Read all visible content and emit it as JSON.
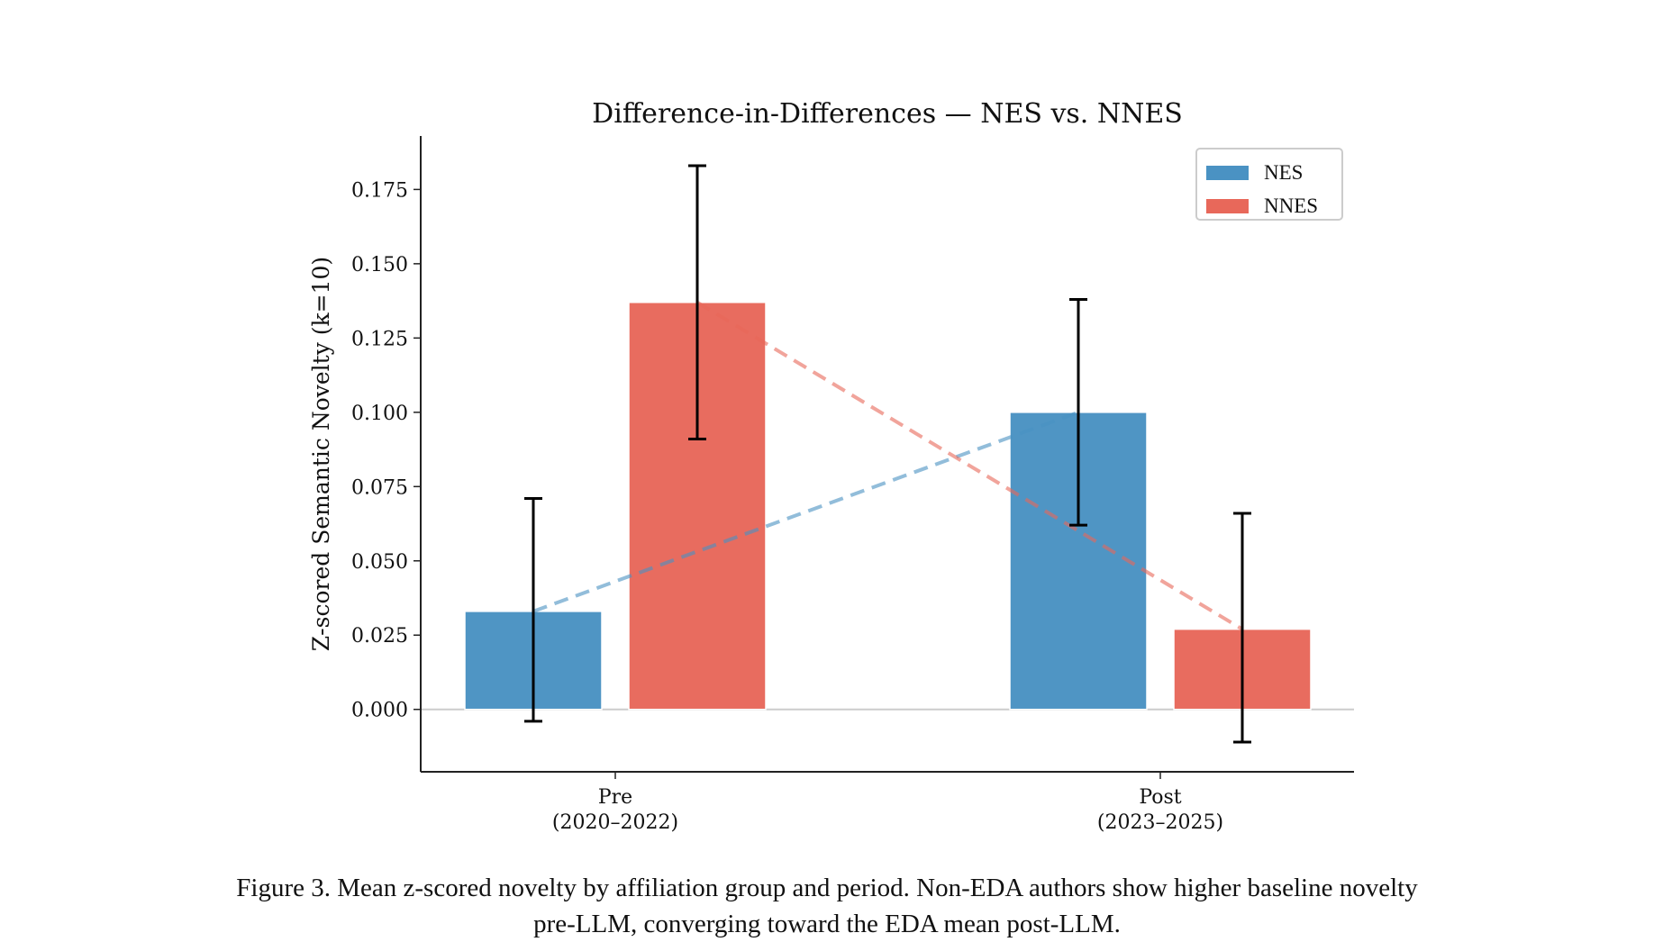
{
  "chart_data": {
    "type": "bar",
    "title": "Difference-in-Differences — NES vs. NNES",
    "xlabel": "",
    "ylabel": "Z-scored Semantic Novelty (k=10)",
    "categories": [
      "Pre\n(2020–2022)",
      "Post\n(2023–2025)"
    ],
    "category_lines": [
      [
        "Pre",
        "(2020–2022)"
      ],
      [
        "Post",
        "(2023–2025)"
      ]
    ],
    "ylim": [
      -0.021,
      0.193
    ],
    "yticks": [
      "0.000",
      "0.025",
      "0.050",
      "0.075",
      "0.100",
      "0.125",
      "0.150",
      "0.175"
    ],
    "ytick_values": [
      0,
      0.025,
      0.05,
      0.075,
      0.1,
      0.125,
      0.15,
      0.175
    ],
    "grid": false,
    "legend_position": "top-right",
    "series": [
      {
        "name": "NES",
        "color": "#4a92c3",
        "values": [
          0.033,
          0.1
        ],
        "err_low": [
          -0.004,
          0.062
        ],
        "err_high": [
          0.071,
          0.138
        ]
      },
      {
        "name": "NNES",
        "color": "#e8685a",
        "values": [
          0.137,
          0.027
        ],
        "err_low": [
          0.091,
          -0.011
        ],
        "err_high": [
          0.183,
          0.066
        ]
      }
    ],
    "trend_lines": "dashed lines connecting each group's Pre and Post means"
  },
  "caption": {
    "line1": "Figure 3. Mean z-scored novelty by affiliation group and period. Non-EDA authors show higher baseline novelty",
    "line2": "pre-LLM, converging toward the EDA mean post-LLM."
  }
}
